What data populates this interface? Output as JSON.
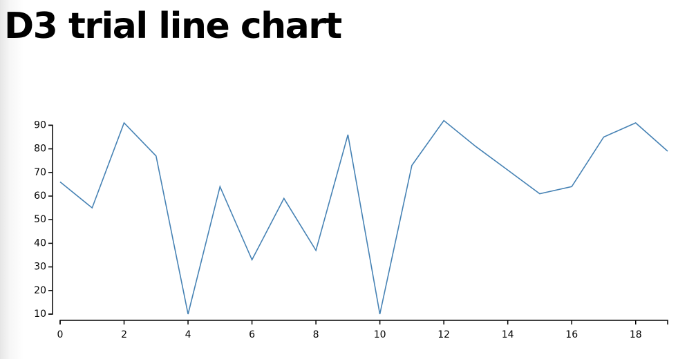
{
  "page": {
    "title": "D3 trial line chart"
  },
  "chart_data": {
    "type": "line",
    "x": [
      0,
      1,
      2,
      3,
      4,
      5,
      6,
      7,
      8,
      9,
      10,
      11,
      12,
      13,
      14,
      15,
      16,
      17,
      18,
      19
    ],
    "series": [
      {
        "values": [
          66,
          55,
          91,
          77,
          10,
          64,
          33,
          59,
          37,
          86,
          10,
          73,
          92,
          81,
          71,
          61,
          64,
          85,
          91,
          79
        ],
        "color": "#4682b4"
      }
    ],
    "xlim": [
      0,
      19
    ],
    "ylim": [
      10,
      91
    ],
    "x_ticks": [
      0,
      2,
      4,
      6,
      8,
      10,
      12,
      14,
      16,
      18
    ],
    "y_ticks": [
      10,
      20,
      30,
      40,
      50,
      60,
      70,
      80,
      90
    ],
    "grid": false,
    "axis_color": "#000000"
  }
}
